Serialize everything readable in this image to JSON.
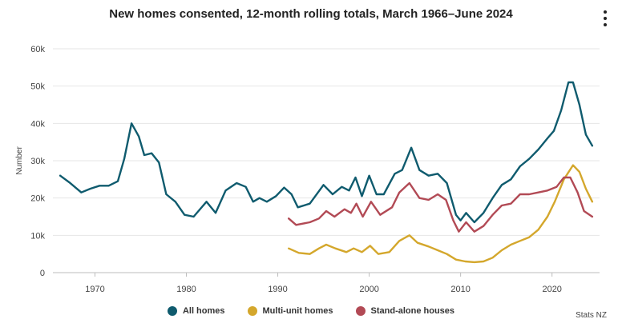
{
  "chart_data": {
    "type": "line",
    "title": "New homes consented, 12-month rolling totals, March 1966–June 2024",
    "ylabel": "Number",
    "xlabel": "",
    "xlim": [
      1965.4,
      2025.2
    ],
    "ylim": [
      0,
      60000
    ],
    "x_ticks": [
      1970,
      1980,
      1990,
      2000,
      2010,
      2020
    ],
    "x_tick_labels": [
      "1970",
      "1980",
      "1990",
      "2000",
      "2010",
      "2020"
    ],
    "y_ticks": [
      0,
      10000,
      20000,
      30000,
      40000,
      50000,
      60000
    ],
    "y_tick_labels": [
      "0",
      "10k",
      "20k",
      "30k",
      "40k",
      "50k",
      "60k"
    ],
    "grid": "horizontal",
    "legend_position": "bottom",
    "series": [
      {
        "name": "All homes",
        "color": "#0f5b6e",
        "points": [
          [
            1966.2,
            26000
          ],
          [
            1967.2,
            24200
          ],
          [
            1968.5,
            21500
          ],
          [
            1969.5,
            22500
          ],
          [
            1970.5,
            23300
          ],
          [
            1971.5,
            23300
          ],
          [
            1972.5,
            24500
          ],
          [
            1973.2,
            30500
          ],
          [
            1974.0,
            40000
          ],
          [
            1974.8,
            36500
          ],
          [
            1975.4,
            31500
          ],
          [
            1976.2,
            32000
          ],
          [
            1977.0,
            29500
          ],
          [
            1977.8,
            21000
          ],
          [
            1978.8,
            19000
          ],
          [
            1979.8,
            15500
          ],
          [
            1980.8,
            15000
          ],
          [
            1982.2,
            19000
          ],
          [
            1983.2,
            16000
          ],
          [
            1984.3,
            22000
          ],
          [
            1985.5,
            24000
          ],
          [
            1986.5,
            23000
          ],
          [
            1987.3,
            19000
          ],
          [
            1988.0,
            20000
          ],
          [
            1988.8,
            19000
          ],
          [
            1989.8,
            20500
          ],
          [
            1990.7,
            22800
          ],
          [
            1991.5,
            21000
          ],
          [
            1992.2,
            17500
          ],
          [
            1993.5,
            18500
          ],
          [
            1995.0,
            23500
          ],
          [
            1996.0,
            21000
          ],
          [
            1997.0,
            23000
          ],
          [
            1997.8,
            22000
          ],
          [
            1998.5,
            25500
          ],
          [
            1999.2,
            20500
          ],
          [
            2000.0,
            26000
          ],
          [
            2000.8,
            21000
          ],
          [
            2001.6,
            21000
          ],
          [
            2002.8,
            26500
          ],
          [
            2003.6,
            27500
          ],
          [
            2004.6,
            33500
          ],
          [
            2005.5,
            27500
          ],
          [
            2006.5,
            26000
          ],
          [
            2007.5,
            26500
          ],
          [
            2008.5,
            24000
          ],
          [
            2009.5,
            15500
          ],
          [
            2010.0,
            14000
          ],
          [
            2010.6,
            16000
          ],
          [
            2011.5,
            13500
          ],
          [
            2012.5,
            16000
          ],
          [
            2013.5,
            20000
          ],
          [
            2014.5,
            23500
          ],
          [
            2015.5,
            25000
          ],
          [
            2016.5,
            28500
          ],
          [
            2017.5,
            30500
          ],
          [
            2018.5,
            33000
          ],
          [
            2019.5,
            36000
          ],
          [
            2020.2,
            38000
          ],
          [
            2021.0,
            43500
          ],
          [
            2021.8,
            51000
          ],
          [
            2022.3,
            51000
          ],
          [
            2023.0,
            45000
          ],
          [
            2023.7,
            37000
          ],
          [
            2024.4,
            34000
          ]
        ]
      },
      {
        "name": "Multi-unit homes",
        "color": "#d4a72c",
        "points": [
          [
            1991.2,
            6500
          ],
          [
            1992.3,
            5300
          ],
          [
            1993.5,
            5000
          ],
          [
            1994.5,
            6500
          ],
          [
            1995.3,
            7500
          ],
          [
            1996.3,
            6500
          ],
          [
            1997.5,
            5500
          ],
          [
            1998.3,
            6500
          ],
          [
            1999.2,
            5500
          ],
          [
            2000.1,
            7200
          ],
          [
            2001.0,
            5000
          ],
          [
            2002.2,
            5500
          ],
          [
            2003.3,
            8500
          ],
          [
            2004.4,
            10000
          ],
          [
            2005.3,
            8000
          ],
          [
            2006.5,
            7000
          ],
          [
            2007.5,
            6000
          ],
          [
            2008.5,
            5000
          ],
          [
            2009.5,
            3500
          ],
          [
            2010.5,
            3000
          ],
          [
            2011.5,
            2800
          ],
          [
            2012.5,
            3000
          ],
          [
            2013.5,
            4000
          ],
          [
            2014.5,
            6000
          ],
          [
            2015.5,
            7500
          ],
          [
            2016.5,
            8500
          ],
          [
            2017.5,
            9500
          ],
          [
            2018.5,
            11500
          ],
          [
            2019.5,
            15000
          ],
          [
            2020.3,
            19000
          ],
          [
            2021.3,
            25000
          ],
          [
            2022.3,
            28800
          ],
          [
            2023.0,
            27000
          ],
          [
            2023.7,
            22500
          ],
          [
            2024.4,
            19000
          ]
        ]
      },
      {
        "name": "Stand-alone houses",
        "color": "#b24a55",
        "points": [
          [
            1991.2,
            14500
          ],
          [
            1992.0,
            12800
          ],
          [
            1993.5,
            13500
          ],
          [
            1994.5,
            14500
          ],
          [
            1995.3,
            16500
          ],
          [
            1996.2,
            15000
          ],
          [
            1997.3,
            17000
          ],
          [
            1998.0,
            16000
          ],
          [
            1998.6,
            18500
          ],
          [
            1999.3,
            15000
          ],
          [
            2000.2,
            19000
          ],
          [
            2001.2,
            15500
          ],
          [
            2002.5,
            17500
          ],
          [
            2003.3,
            21500
          ],
          [
            2004.4,
            24000
          ],
          [
            2005.5,
            20000
          ],
          [
            2006.5,
            19500
          ],
          [
            2007.5,
            21000
          ],
          [
            2008.4,
            19500
          ],
          [
            2009.2,
            14000
          ],
          [
            2009.8,
            11000
          ],
          [
            2010.6,
            13500
          ],
          [
            2011.5,
            11000
          ],
          [
            2012.5,
            12500
          ],
          [
            2013.5,
            15500
          ],
          [
            2014.5,
            18000
          ],
          [
            2015.5,
            18500
          ],
          [
            2016.5,
            21000
          ],
          [
            2017.5,
            21000
          ],
          [
            2018.5,
            21500
          ],
          [
            2019.5,
            22000
          ],
          [
            2020.5,
            23000
          ],
          [
            2021.3,
            25500
          ],
          [
            2022.0,
            25500
          ],
          [
            2022.8,
            21500
          ],
          [
            2023.5,
            16500
          ],
          [
            2024.4,
            15000
          ]
        ]
      }
    ],
    "credit": "Stats NZ"
  },
  "ui": {
    "menu_icon": "vertical-ellipsis-icon",
    "legend_marker_shape": "circle"
  }
}
